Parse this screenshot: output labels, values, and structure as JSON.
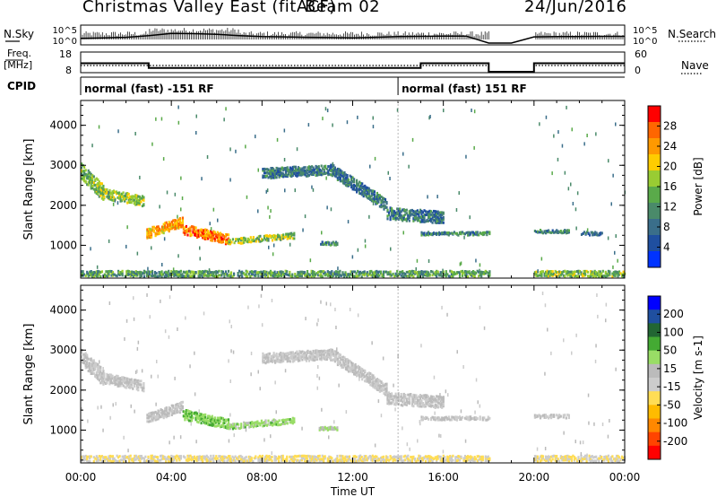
{
  "header": {
    "station": "Christmas Valley East (fitACF)",
    "beam": "Beam 02",
    "date": "24/Jun/2016"
  },
  "panels_top": {
    "nsky_label": "N.Sky",
    "nsearch_label": "N.Search",
    "freq_label_1": "Freq.",
    "freq_label_2": "[MHz]",
    "nave_label": "Nave",
    "cpid_label": "CPID",
    "ticks_left_top": [
      "10^5",
      "10^0"
    ],
    "ticks_right_top": [
      "10^5",
      "10^0"
    ],
    "ticks_left_freq": [
      "18",
      "8"
    ],
    "ticks_right_freq": [
      "60",
      "0"
    ]
  },
  "cpid_segments": [
    {
      "label": "normal (fast) -151 RF",
      "start_h": 0.0,
      "end_h": 14.0
    },
    {
      "label": "normal (fast) 151 RF",
      "start_h": 14.0,
      "end_h": 24.0
    }
  ],
  "colors": {
    "power_scale": [
      "#0033ff",
      "#1f4fa0",
      "#3a6e8a",
      "#4a8a6a",
      "#5aaa4a",
      "#99cc33",
      "#ffcc00",
      "#ff9900",
      "#ff6600",
      "#ff0000"
    ],
    "velocity_scale": [
      "#ff0000",
      "#ff4400",
      "#ff8800",
      "#ffbb00",
      "#ffdd55",
      "#cccccc",
      "#bbbbbb",
      "#99dd66",
      "#44aa33",
      "#226633",
      "#1f4fa0",
      "#0000ff"
    ]
  },
  "chart_data": [
    {
      "type": "line",
      "title": "N.Sky / N.Search",
      "xlabel": "",
      "ylabel": "N.Sky",
      "x": [
        0,
        1,
        2,
        3,
        4,
        5,
        6,
        7,
        8,
        9,
        10,
        11,
        12,
        13,
        14,
        15,
        16,
        17,
        18,
        19,
        20,
        21,
        22,
        23,
        24
      ],
      "series": [
        {
          "name": "N.Sky",
          "values": [
            30,
            40,
            60,
            200,
            1000,
            800,
            500,
            200,
            100,
            80,
            60,
            50,
            40,
            60,
            100,
            120,
            150,
            150,
            1,
            1,
            80,
            100,
            100,
            120,
            120
          ]
        },
        {
          "name": "N.Search",
          "values": [
            30,
            40,
            60,
            200,
            1000,
            800,
            500,
            200,
            100,
            80,
            60,
            50,
            40,
            60,
            100,
            120,
            150,
            150,
            1,
            1,
            80,
            100,
            100,
            120,
            120
          ]
        }
      ],
      "ylim": [
        1,
        100000
      ],
      "scale": "log"
    },
    {
      "type": "line",
      "title": "Freq / Nave",
      "x": [
        0,
        3,
        3,
        15,
        15,
        18,
        18,
        20,
        20,
        24
      ],
      "series": [
        {
          "name": "Freq",
          "values": [
            12.5,
            12.5,
            10.0,
            10.0,
            12.5,
            12.5,
            8.0,
            8.0,
            12.5,
            12.5
          ]
        },
        {
          "name": "Nave",
          "values": [
            20,
            20,
            20,
            20,
            20,
            20,
            0,
            0,
            20,
            20
          ]
        }
      ],
      "ylim": [
        8,
        18
      ],
      "y2lim": [
        0,
        60
      ]
    },
    {
      "type": "heatmap",
      "title": "Power [dB]",
      "xlabel": "",
      "ylabel": "Slant Range [km]",
      "x_ticks": [
        "00:00",
        "04:00",
        "08:00",
        "12:00",
        "16:00",
        "20:00",
        "00:00"
      ],
      "y_ticks": [
        "1000",
        "2000",
        "3000",
        "4000"
      ],
      "colorbar_ticks": [
        "4",
        "8",
        "12",
        "16",
        "20",
        "24",
        "28"
      ],
      "colorbar_label": "Power [dB]",
      "xlim": [
        0,
        24
      ],
      "ylim": [
        180,
        4620
      ],
      "zlim": [
        0,
        30
      ],
      "features": [
        {
          "t0": 0.0,
          "t1": 1.0,
          "r0": 2850,
          "r1": 2300,
          "w": 400,
          "v": 14
        },
        {
          "t0": 1.0,
          "t1": 2.8,
          "r0": 2300,
          "r1": 2100,
          "w": 250,
          "v": 16
        },
        {
          "t0": 2.9,
          "t1": 4.5,
          "r0": 1300,
          "r1": 1600,
          "w": 250,
          "v": 22
        },
        {
          "t0": 4.5,
          "t1": 6.5,
          "r0": 1400,
          "r1": 1150,
          "w": 250,
          "v": 24
        },
        {
          "t0": 6.5,
          "t1": 9.4,
          "r0": 1100,
          "r1": 1250,
          "w": 150,
          "v": 16
        },
        {
          "t0": 8.0,
          "t1": 11.0,
          "r0": 2800,
          "r1": 2900,
          "w": 250,
          "v": 8
        },
        {
          "t0": 11.0,
          "t1": 13.5,
          "r0": 2900,
          "r1": 2000,
          "w": 300,
          "v": 8
        },
        {
          "t0": 13.5,
          "t1": 16.0,
          "r0": 1800,
          "r1": 1700,
          "w": 300,
          "v": 8
        },
        {
          "t0": 10.5,
          "t1": 11.3,
          "r0": 1050,
          "r1": 1050,
          "w": 80,
          "v": 10
        },
        {
          "t0": 15.0,
          "t1": 18.0,
          "r0": 1300,
          "r1": 1300,
          "w": 80,
          "v": 10
        },
        {
          "t0": 20.0,
          "t1": 21.5,
          "r0": 1350,
          "r1": 1350,
          "w": 80,
          "v": 10
        },
        {
          "t0": 22.0,
          "t1": 23.0,
          "r0": 1300,
          "r1": 1300,
          "w": 80,
          "v": 8
        },
        {
          "t0": 0.0,
          "t1": 18.0,
          "r0": 300,
          "r1": 300,
          "w": 150,
          "v": 12
        },
        {
          "t0": 20.0,
          "t1": 24.0,
          "r0": 300,
          "r1": 300,
          "w": 150,
          "v": 14
        }
      ]
    },
    {
      "type": "heatmap",
      "title": "Velocity",
      "xlabel": "Time UT",
      "ylabel": "Slant Range [km]",
      "x_ticks": [
        "00:00",
        "04:00",
        "08:00",
        "12:00",
        "16:00",
        "20:00",
        "00:00"
      ],
      "y_ticks": [
        "1000",
        "2000",
        "3000",
        "4000"
      ],
      "colorbar_ticks": [
        "200",
        "100",
        "50",
        "15",
        "-15",
        "-50",
        "-100",
        "-200"
      ],
      "colorbar_label": "Velocity [m s-1]",
      "xlim": [
        0,
        24
      ],
      "ylim": [
        180,
        4620
      ],
      "zlim": [
        -250,
        250
      ],
      "features": [
        {
          "t0": 0.0,
          "t1": 1.0,
          "r0": 2850,
          "r1": 2300,
          "w": 400,
          "v": 0
        },
        {
          "t0": 1.0,
          "t1": 2.8,
          "r0": 2300,
          "r1": 2100,
          "w": 250,
          "v": 0
        },
        {
          "t0": 2.9,
          "t1": 4.5,
          "r0": 1300,
          "r1": 1600,
          "w": 250,
          "v": 5
        },
        {
          "t0": 4.5,
          "t1": 6.5,
          "r0": 1400,
          "r1": 1150,
          "w": 250,
          "v": 80
        },
        {
          "t0": 6.5,
          "t1": 9.4,
          "r0": 1100,
          "r1": 1250,
          "w": 150,
          "v": 60
        },
        {
          "t0": 8.0,
          "t1": 11.0,
          "r0": 2800,
          "r1": 2900,
          "w": 250,
          "v": 0
        },
        {
          "t0": 11.0,
          "t1": 13.5,
          "r0": 2900,
          "r1": 2000,
          "w": 300,
          "v": 0
        },
        {
          "t0": 13.5,
          "t1": 16.0,
          "r0": 1800,
          "r1": 1700,
          "w": 300,
          "v": 0
        },
        {
          "t0": 10.5,
          "t1": 11.3,
          "r0": 1050,
          "r1": 1050,
          "w": 80,
          "v": 40
        },
        {
          "t0": 15.0,
          "t1": 18.0,
          "r0": 1300,
          "r1": 1300,
          "w": 80,
          "v": 0
        },
        {
          "t0": 20.0,
          "t1": 21.5,
          "r0": 1350,
          "r1": 1350,
          "w": 80,
          "v": 0
        },
        {
          "t0": 0.0,
          "t1": 18.0,
          "r0": 300,
          "r1": 300,
          "w": 150,
          "v": -40
        },
        {
          "t0": 20.0,
          "t1": 24.0,
          "r0": 300,
          "r1": 300,
          "w": 150,
          "v": -40
        }
      ]
    }
  ]
}
